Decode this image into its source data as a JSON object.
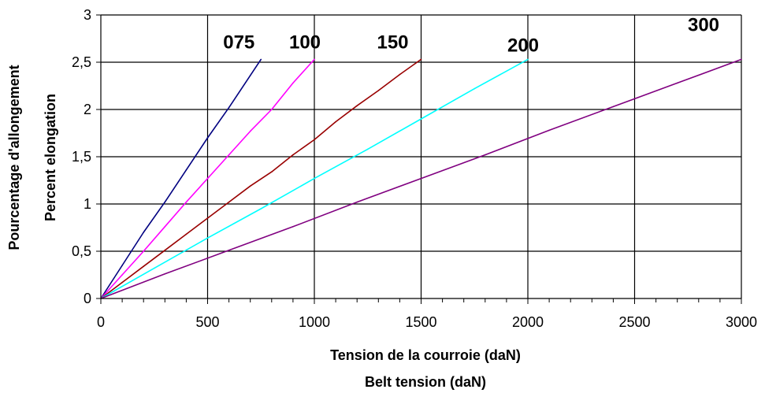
{
  "chart_data": {
    "type": "line",
    "title": "",
    "xlabel_lines": [
      "Tension de la courroie (daN)",
      "Belt tension (daN)"
    ],
    "ylabel_lines": [
      "Pourcentage d'allongement",
      "Percent elongation"
    ],
    "xlim": [
      0,
      3000
    ],
    "ylim": [
      0,
      3
    ],
    "x_ticks": [
      0,
      500,
      1000,
      1500,
      2000,
      2500,
      3000
    ],
    "x_tick_labels": [
      "0",
      "500",
      "1000",
      "1500",
      "2000",
      "2500",
      "3000"
    ],
    "y_ticks": [
      0,
      0.5,
      1,
      1.5,
      2,
      2.5,
      3
    ],
    "y_tick_labels": [
      "0",
      "0,5",
      "1",
      "1,5",
      "2",
      "2,5",
      "3"
    ],
    "grid": true,
    "legend": "none",
    "series": [
      {
        "name": "075",
        "color": "#000080",
        "x": [
          0,
          100,
          200,
          300,
          400,
          500,
          600,
          700,
          750
        ],
        "y": [
          0,
          0.35,
          0.7,
          1.02,
          1.36,
          1.7,
          2.02,
          2.36,
          2.53
        ]
      },
      {
        "name": "100",
        "color": "#ff00ff",
        "x": [
          0,
          100,
          200,
          300,
          400,
          500,
          600,
          700,
          800,
          900,
          1000
        ],
        "y": [
          0,
          0.25,
          0.5,
          0.76,
          1.02,
          1.27,
          1.52,
          1.77,
          2.0,
          2.28,
          2.53
        ]
      },
      {
        "name": "150",
        "color": "#990000",
        "x": [
          0,
          100,
          200,
          300,
          400,
          500,
          600,
          700,
          800,
          900,
          1000,
          1100,
          1200,
          1300,
          1400,
          1500
        ],
        "y": [
          0,
          0.17,
          0.34,
          0.51,
          0.68,
          0.85,
          1.02,
          1.19,
          1.34,
          1.52,
          1.68,
          1.87,
          2.04,
          2.2,
          2.37,
          2.53
        ]
      },
      {
        "name": "200",
        "color": "#00ffff",
        "x": [
          0,
          250,
          500,
          750,
          1000,
          1250,
          1500,
          1750,
          2000
        ],
        "y": [
          0,
          0.32,
          0.64,
          0.95,
          1.27,
          1.58,
          1.9,
          2.22,
          2.53
        ]
      },
      {
        "name": "300",
        "color": "#800080",
        "x": [
          0,
          300,
          600,
          900,
          1200,
          1500,
          1800,
          2100,
          2400,
          2700,
          3000
        ],
        "y": [
          0,
          0.26,
          0.51,
          0.76,
          1.02,
          1.27,
          1.52,
          1.78,
          2.03,
          2.28,
          2.53
        ]
      }
    ]
  }
}
